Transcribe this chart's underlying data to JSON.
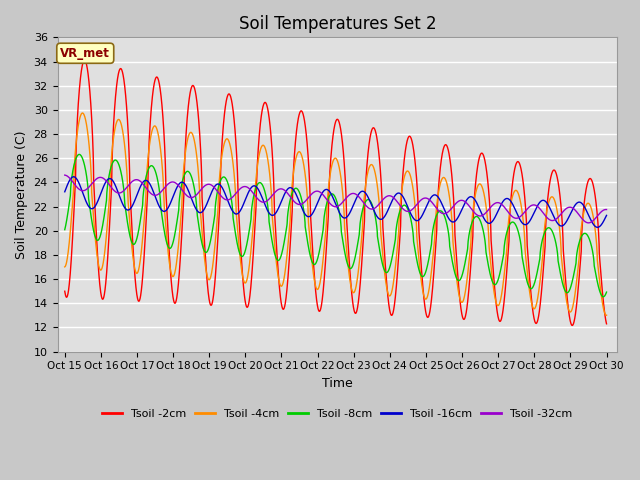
{
  "title": "Soil Temperatures Set 2",
  "xlabel": "Time",
  "ylabel": "Soil Temperature (C)",
  "ylim": [
    10,
    36
  ],
  "yticks": [
    10,
    12,
    14,
    16,
    18,
    20,
    22,
    24,
    26,
    28,
    30,
    32,
    34,
    36
  ],
  "xtick_labels": [
    "Oct 15",
    "Oct 16",
    "Oct 17",
    "Oct 18",
    "Oct 19",
    "Oct 20",
    "Oct 21",
    "Oct 22",
    "Oct 23",
    "Oct 24",
    "Oct 25",
    "Oct 26",
    "Oct 27",
    "Oct 28",
    "Oct 29",
    "Oct 30"
  ],
  "xtick_positions": [
    0,
    1,
    2,
    3,
    4,
    5,
    6,
    7,
    8,
    9,
    10,
    11,
    12,
    13,
    14,
    15
  ],
  "series_colors": [
    "#ff0000",
    "#ff8c00",
    "#00cc00",
    "#0000cc",
    "#9900cc"
  ],
  "series_labels": [
    "Tsoil -2cm",
    "Tsoil -4cm",
    "Tsoil -8cm",
    "Tsoil -16cm",
    "Tsoil -32cm"
  ],
  "annotation_text": "VR_met",
  "figsize": [
    6.4,
    4.8
  ],
  "dpi": 100
}
